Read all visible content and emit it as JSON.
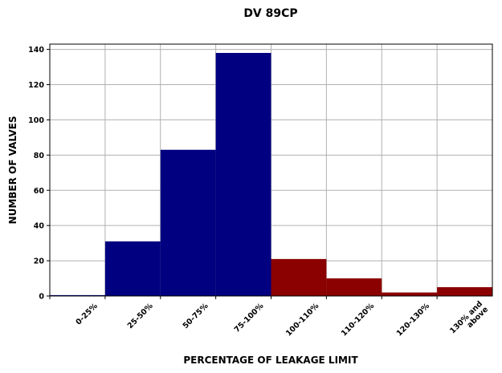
{
  "chart_data": {
    "type": "bar",
    "title": "DV 89CP",
    "xlabel": "PERCENTAGE OF LEAKAGE LIMIT",
    "ylabel": "NUMBER OF VALVES",
    "categories": [
      "0-25%",
      "25-50%",
      "50-75%",
      "75-100%",
      "100-110%",
      "110-120%",
      "120-130%",
      "130% and\nabove"
    ],
    "values": [
      0.5,
      31,
      83,
      138,
      21,
      10,
      2,
      5
    ],
    "bar_colors": [
      "#000080",
      "#000080",
      "#000080",
      "#000080",
      "#8b0000",
      "#8b0000",
      "#8b0000",
      "#8b0000"
    ],
    "ylim": [
      0,
      143
    ],
    "yticks": [
      0,
      20,
      40,
      60,
      80,
      100,
      120,
      140
    ],
    "grid": true,
    "legend": "none"
  }
}
